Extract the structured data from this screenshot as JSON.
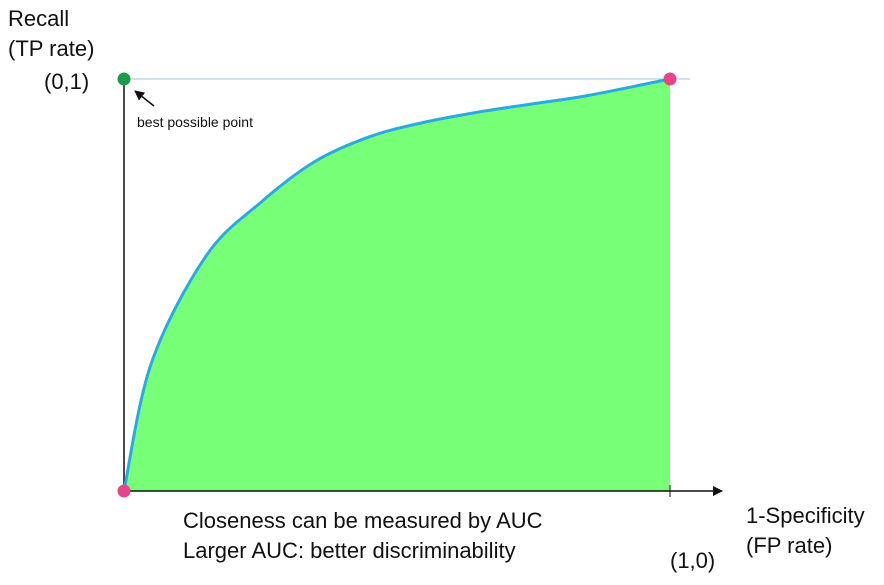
{
  "chart_data": {
    "type": "area",
    "title": "",
    "ylabel_lines": [
      "Recall",
      "(TP rate)"
    ],
    "xlabel_lines": [
      "1-Specificity",
      "(FP rate)"
    ],
    "xlim": [
      0,
      1
    ],
    "ylim": [
      0,
      1
    ],
    "grid": false,
    "legend": "none",
    "ticks": {
      "y_top": "(0,1)",
      "x_right": "(1,0)"
    },
    "annotation": "best possible point",
    "captions": [
      "Closeness can be measured by AUC",
      "Larger AUC: better discriminability"
    ],
    "series": [
      {
        "x": [
          0,
          0.05,
          0.15,
          0.25,
          0.35,
          0.45,
          0.55,
          0.65,
          0.75,
          0.85,
          1.0
        ],
        "y": [
          0,
          0.31,
          0.57,
          0.7,
          0.8,
          0.86,
          0.895,
          0.92,
          0.94,
          0.96,
          1.0
        ]
      }
    ],
    "points": [
      {
        "role": "best",
        "x": 0,
        "y": 1,
        "color": "#1e9a4e"
      },
      {
        "role": "endpoint",
        "x": 0,
        "y": 0,
        "color": "#e5468a"
      },
      {
        "role": "endpoint",
        "x": 1,
        "y": 1,
        "color": "#e5468a"
      }
    ],
    "colors": {
      "area": "#77ff77",
      "curve": "#2aaae2",
      "reference_line": "#a9dbe8",
      "axis": "#111111"
    }
  }
}
